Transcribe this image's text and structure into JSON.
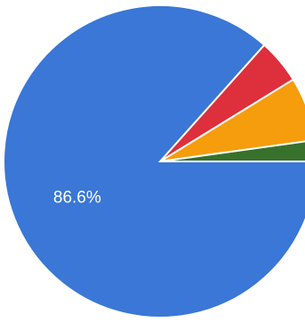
{
  "chart_data": {
    "type": "pie",
    "values": [
      2.2,
      6.6,
      4.6,
      86.6
    ],
    "value_labels": [
      null,
      null,
      null,
      "86.6%"
    ],
    "colors": [
      "#38712b",
      "#f59d0c",
      "#de2f3c",
      "#3a77d6"
    ]
  }
}
